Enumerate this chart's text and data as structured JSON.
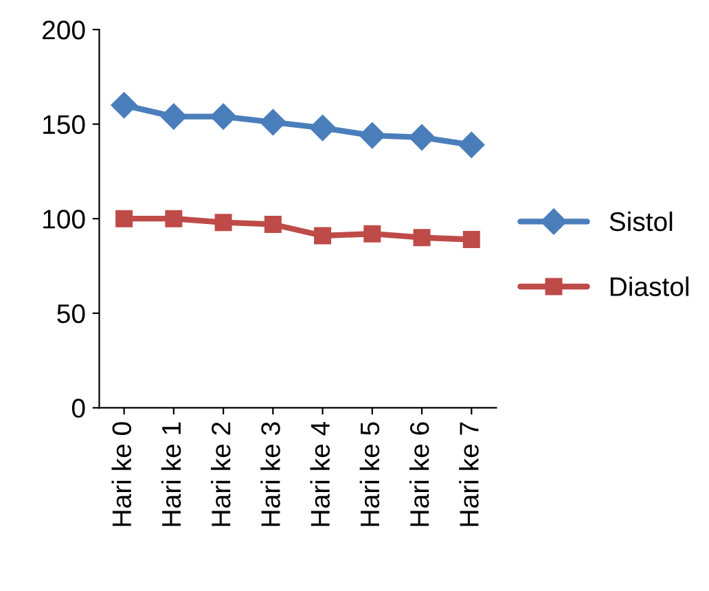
{
  "chart_data": {
    "type": "line",
    "categories": [
      "Hari ke 0",
      "Hari ke 1",
      "Hari ke 2",
      "Hari ke 3",
      "Hari ke 4",
      "Hari ke 5",
      "Hari ke 6",
      "Hari ke 7"
    ],
    "series": [
      {
        "name": "Sistol",
        "color": "#4a7ebb",
        "marker": "diamond",
        "values": [
          160,
          154,
          154,
          151,
          148,
          144,
          143,
          139
        ]
      },
      {
        "name": "Diastol",
        "color": "#be4b48",
        "marker": "square",
        "values": [
          100,
          100,
          98,
          97,
          91,
          92,
          90,
          89
        ]
      }
    ],
    "ylim": [
      0,
      200
    ],
    "yticks": [
      0,
      50,
      100,
      150,
      200
    ],
    "grid": false,
    "legend": "right",
    "line_style": "solid"
  }
}
